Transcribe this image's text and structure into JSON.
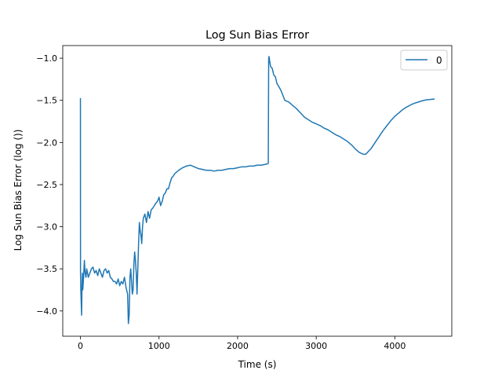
{
  "chart_data": {
    "type": "line",
    "title": "Log Sun Bias Error",
    "xlabel": "Time (s)",
    "ylabel": "Log Sun Bias Error (log ())",
    "xlim": [
      -225,
      4725
    ],
    "ylim": [
      -4.3,
      -0.85
    ],
    "xticks": [
      0,
      1000,
      2000,
      3000,
      4000
    ],
    "xtick_labels": [
      "0",
      "1000",
      "2000",
      "3000",
      "4000"
    ],
    "yticks": [
      -4.0,
      -3.5,
      -3.0,
      -2.5,
      -2.0,
      -1.5,
      -1.0
    ],
    "ytick_labels": [
      "−4.0",
      "−3.5",
      "−3.0",
      "−2.5",
      "−2.0",
      "−1.5",
      "−1.0"
    ],
    "grid": false,
    "legend": {
      "placement": "upper right",
      "entries": [
        "0"
      ]
    },
    "colors": {
      "series": "#1f77b4",
      "axes": "#000000",
      "legend_border": "#cccccc"
    },
    "series": [
      {
        "name": "0",
        "x": [
          0,
          1,
          5,
          10,
          15,
          20,
          25,
          30,
          40,
          50,
          60,
          70,
          80,
          90,
          100,
          120,
          140,
          160,
          180,
          200,
          220,
          240,
          260,
          280,
          300,
          320,
          340,
          360,
          380,
          400,
          420,
          440,
          460,
          480,
          500,
          520,
          540,
          560,
          580,
          600,
          610,
          620,
          630,
          640,
          650,
          660,
          670,
          680,
          690,
          700,
          710,
          720,
          730,
          740,
          750,
          760,
          770,
          780,
          790,
          800,
          820,
          840,
          860,
          880,
          900,
          920,
          940,
          960,
          980,
          1000,
          1020,
          1040,
          1060,
          1080,
          1100,
          1120,
          1140,
          1160,
          1180,
          1200,
          1250,
          1300,
          1350,
          1400,
          1450,
          1500,
          1550,
          1600,
          1650,
          1700,
          1750,
          1800,
          1850,
          1900,
          1950,
          2000,
          2050,
          2100,
          2150,
          2200,
          2250,
          2300,
          2350,
          2390,
          2395,
          2400,
          2410,
          2420,
          2440,
          2460,
          2480,
          2500,
          2520,
          2550,
          2580,
          2600,
          2650,
          2700,
          2750,
          2800,
          2850,
          2900,
          2950,
          3000,
          3050,
          3100,
          3150,
          3200,
          3250,
          3300,
          3350,
          3400,
          3450,
          3500,
          3550,
          3600,
          3630,
          3650,
          3700,
          3750,
          3800,
          3850,
          3900,
          3950,
          4000,
          4050,
          4100,
          4150,
          4200,
          4250,
          4300,
          4350,
          4400,
          4450,
          4500
        ],
        "y": [
          -1.48,
          -3.55,
          -3.75,
          -3.9,
          -4.05,
          -3.7,
          -3.55,
          -3.75,
          -3.6,
          -3.4,
          -3.55,
          -3.6,
          -3.5,
          -3.55,
          -3.6,
          -3.55,
          -3.5,
          -3.48,
          -3.55,
          -3.52,
          -3.58,
          -3.5,
          -3.55,
          -3.6,
          -3.52,
          -3.5,
          -3.55,
          -3.52,
          -3.6,
          -3.62,
          -3.65,
          -3.65,
          -3.68,
          -3.62,
          -3.7,
          -3.65,
          -3.68,
          -3.6,
          -3.72,
          -3.8,
          -4.15,
          -4.05,
          -3.6,
          -3.5,
          -3.65,
          -3.8,
          -3.75,
          -3.45,
          -3.3,
          -3.4,
          -3.55,
          -3.8,
          -3.5,
          -3.2,
          -2.95,
          -3.05,
          -3.1,
          -3.2,
          -3.0,
          -2.9,
          -2.85,
          -2.95,
          -2.82,
          -2.9,
          -2.8,
          -2.78,
          -2.75,
          -2.72,
          -2.7,
          -2.65,
          -2.75,
          -2.7,
          -2.62,
          -2.6,
          -2.55,
          -2.55,
          -2.48,
          -2.42,
          -2.4,
          -2.37,
          -2.33,
          -2.3,
          -2.28,
          -2.27,
          -2.29,
          -2.31,
          -2.32,
          -2.33,
          -2.33,
          -2.34,
          -2.33,
          -2.33,
          -2.32,
          -2.31,
          -2.31,
          -2.3,
          -2.29,
          -2.29,
          -2.28,
          -2.28,
          -2.27,
          -2.27,
          -2.26,
          -2.25,
          -1.0,
          -0.98,
          -1.05,
          -1.1,
          -1.12,
          -1.2,
          -1.22,
          -1.3,
          -1.33,
          -1.38,
          -1.45,
          -1.5,
          -1.52,
          -1.56,
          -1.6,
          -1.65,
          -1.7,
          -1.73,
          -1.76,
          -1.78,
          -1.8,
          -1.83,
          -1.85,
          -1.88,
          -1.91,
          -1.93,
          -1.96,
          -1.99,
          -2.03,
          -2.08,
          -2.12,
          -2.14,
          -2.14,
          -2.12,
          -2.07,
          -2.0,
          -1.93,
          -1.86,
          -1.8,
          -1.74,
          -1.69,
          -1.65,
          -1.61,
          -1.58,
          -1.555,
          -1.535,
          -1.52,
          -1.505,
          -1.495,
          -1.49,
          -1.485
        ]
      }
    ]
  }
}
